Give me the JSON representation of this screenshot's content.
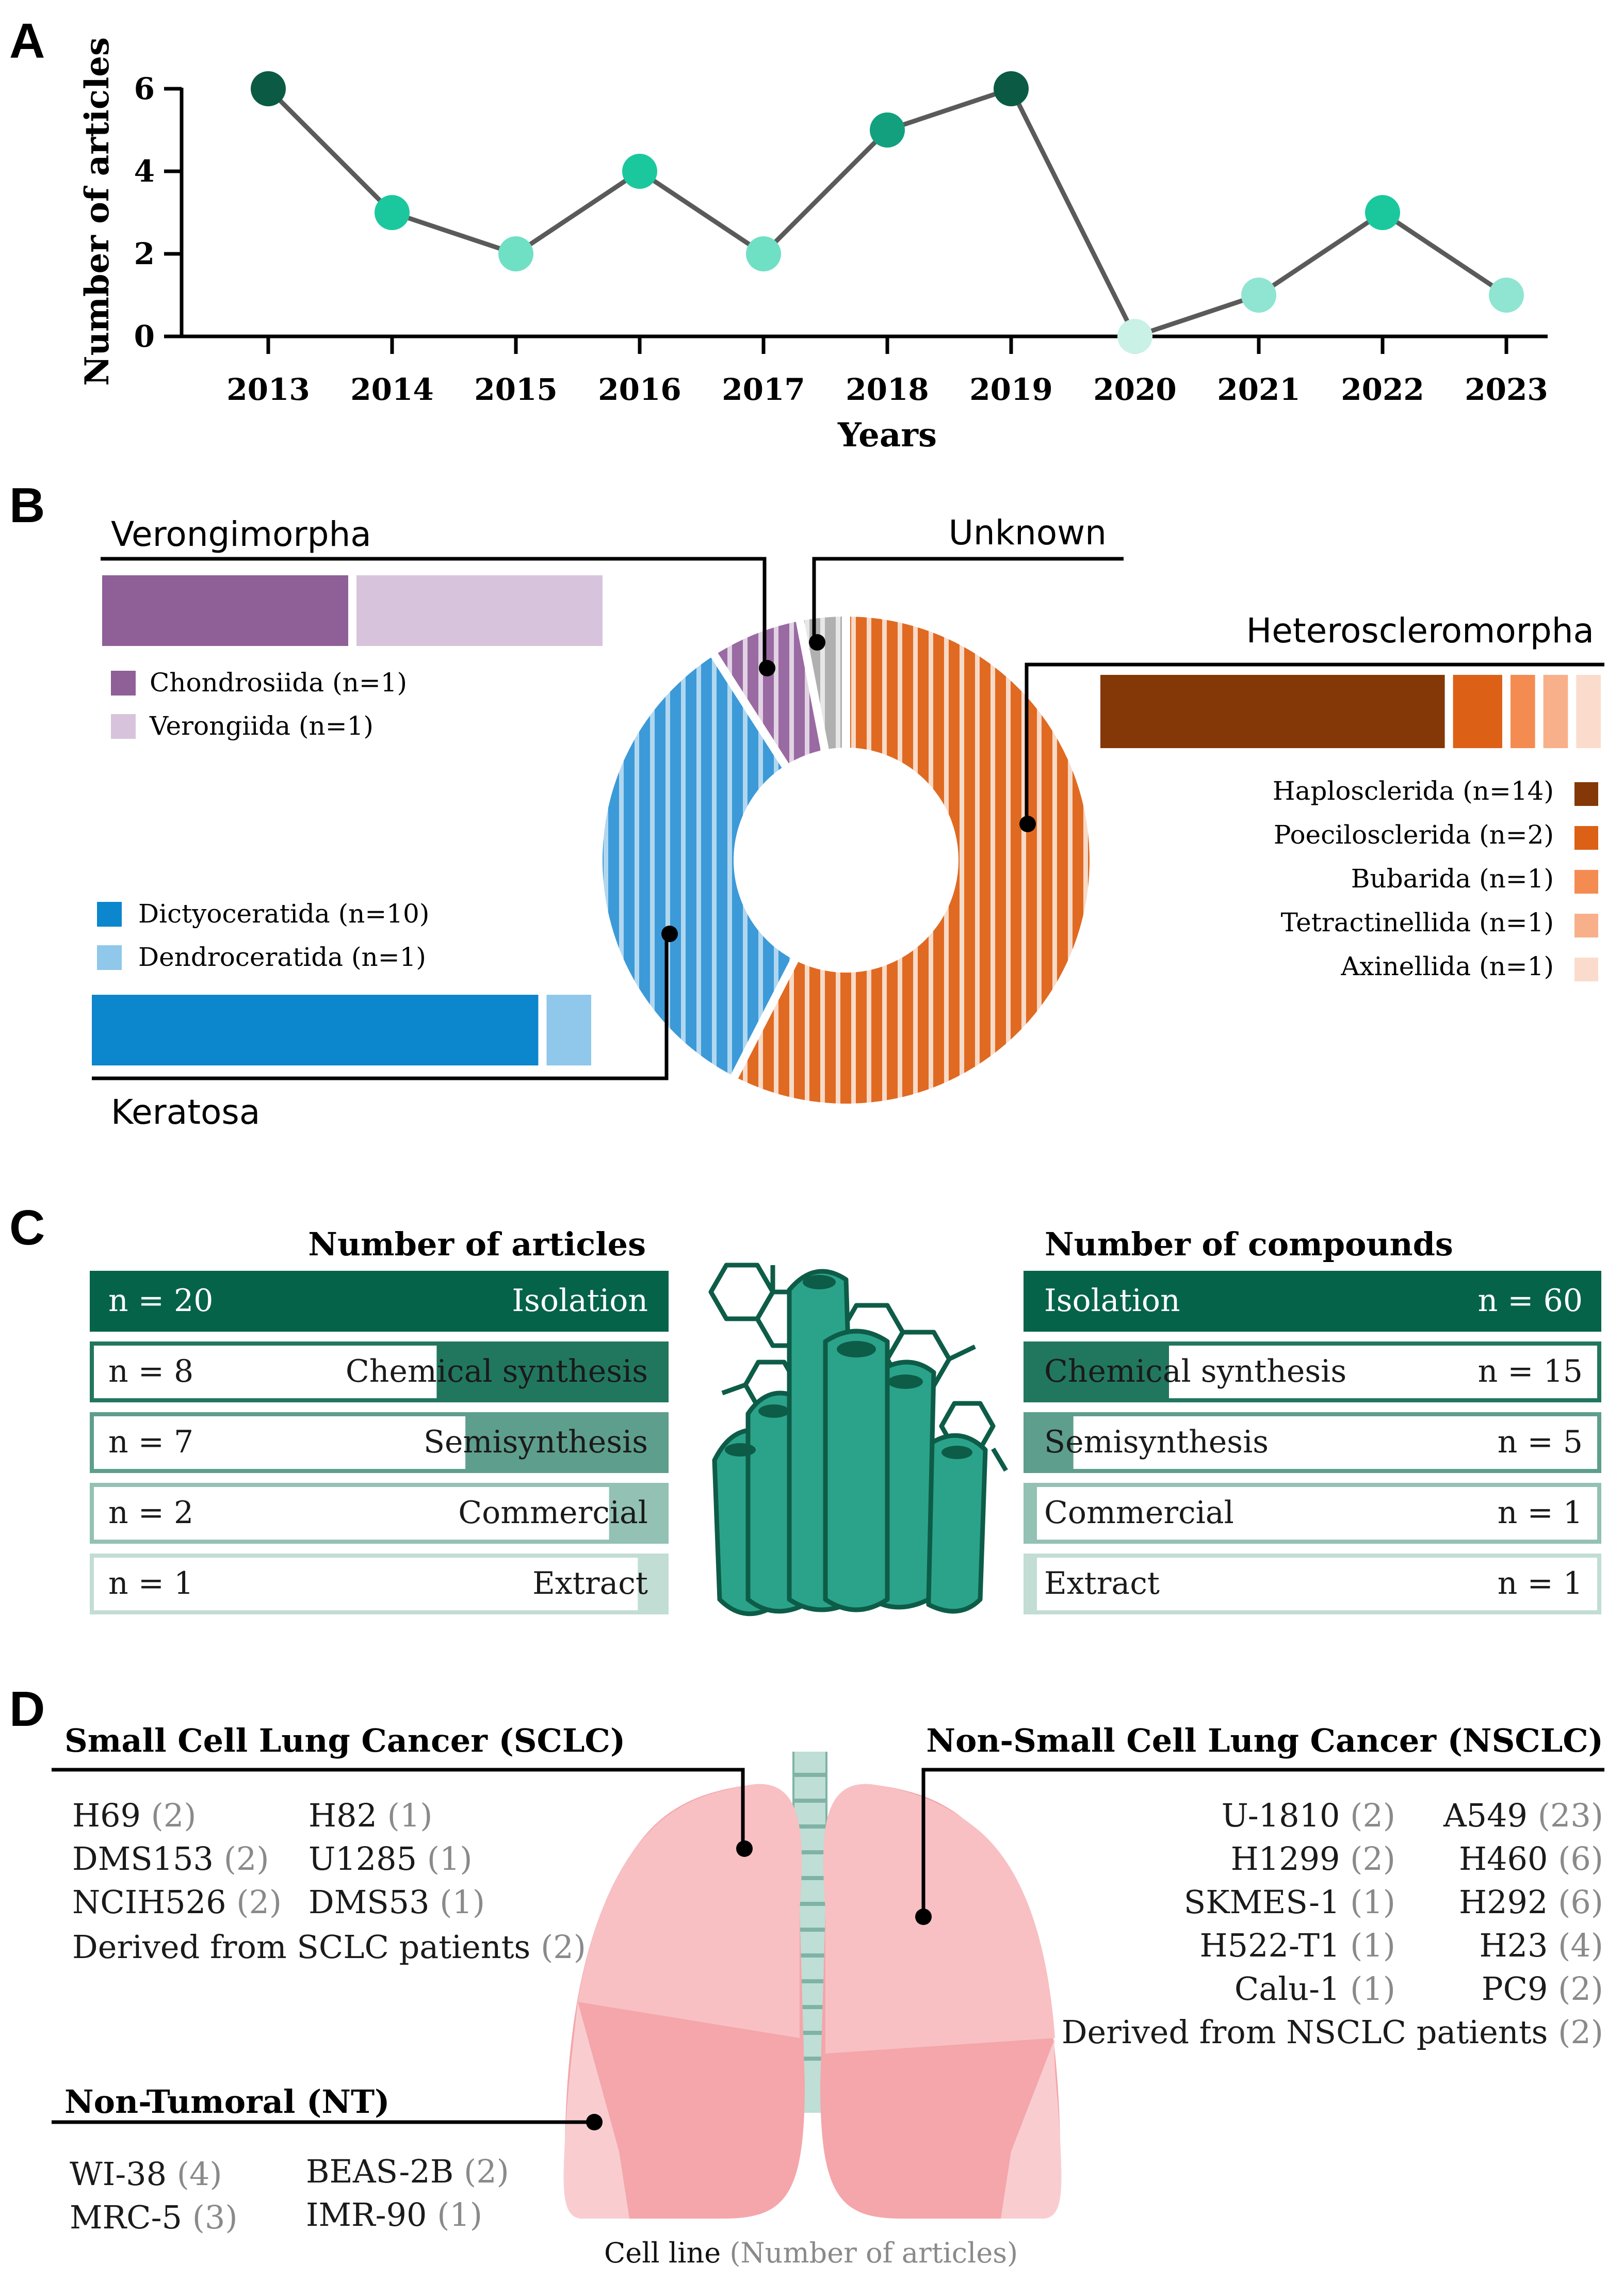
{
  "colors": {
    "dark_teal": "#05634a",
    "teal_70": "#3a8c74",
    "teal_50": "#6aa896",
    "teal_30": "#9cc7ba",
    "teal_15": "#c6e0d7",
    "sponge": "#2ba38a",
    "sponge_outline": "#0d5c47"
  },
  "panel_a": {
    "label": "A",
    "chart_data": {
      "type": "line",
      "title": "",
      "xlabel": "Years",
      "ylabel": "Number of articles",
      "x": [
        "2013",
        "2014",
        "2015",
        "2016",
        "2017",
        "2018",
        "2019",
        "2020",
        "2021",
        "2022",
        "2023"
      ],
      "values": [
        6,
        3,
        2,
        4,
        2,
        5,
        6,
        0,
        1,
        3,
        1
      ],
      "ylim": [
        0,
        6
      ],
      "yticks": [
        "0",
        "2",
        "4",
        "6"
      ],
      "grid": false
    }
  },
  "panel_b": {
    "label": "B",
    "chart_data": {
      "type": "pie",
      "variant": "donut with breakdown bars",
      "slices": [
        {
          "name": "Heteroscleromorpha",
          "value": 19,
          "color": "#d9601b"
        },
        {
          "name": "Keratosa",
          "value": 11,
          "color": "#5aace0"
        },
        {
          "name": "Verongimorpha",
          "value": 2,
          "color": "#9a6aa3"
        },
        {
          "name": "Unknown",
          "value": 1,
          "color": "#b5b5b5"
        }
      ],
      "groups": [
        {
          "name": "Verongimorpha",
          "orders": [
            {
              "label": "Chondrosiida (n=1)",
              "value": 1,
              "color": "#8f5f98"
            },
            {
              "label": "Verongiida (n=1)",
              "value": 1,
              "color": "#d8c3dc"
            }
          ]
        },
        {
          "name": "Heteroscleromorpha",
          "orders": [
            {
              "label": "Haplosclerida (n=14)",
              "value": 14,
              "color": "#843707"
            },
            {
              "label": "Poecilosclerida (n=2)",
              "value": 2,
              "color": "#dc6116"
            },
            {
              "label": "Bubarida (n=1)",
              "value": 1,
              "color": "#f48c52"
            },
            {
              "label": "Tetractinellida (n=1)",
              "value": 1,
              "color": "#f8b08a"
            },
            {
              "label": "Axinellida (n=1)",
              "value": 1,
              "color": "#fbdccc"
            }
          ]
        },
        {
          "name": "Keratosa",
          "orders": [
            {
              "label": "Dictyoceratida (n=10)",
              "value": 10,
              "color": "#0c86cc"
            },
            {
              "label": "Dendroceratida (n=1)",
              "value": 1,
              "color": "#8fc8ea"
            }
          ]
        },
        {
          "name": "Unknown",
          "orders": []
        }
      ]
    }
  },
  "panel_c": {
    "label": "C",
    "chart_data": {
      "type": "bar",
      "articles_title": "Number of articles",
      "compounds_title": "Number of compounds",
      "categories": [
        "Isolation",
        "Chemical synthesis",
        "Semisynthesis",
        "Commercial",
        "Extract"
      ],
      "articles": [
        20,
        8,
        7,
        2,
        1
      ],
      "articles_labels": [
        "n = 20",
        "n = 8",
        "n = 7",
        "n = 2",
        "n = 1"
      ],
      "compounds": [
        60,
        15,
        5,
        1,
        1
      ],
      "compounds_labels": [
        "n = 60",
        "n = 15",
        "n = 5",
        "n = 1",
        "n = 1"
      ],
      "row_colors": [
        "#05634a",
        "#21775e",
        "#5e9e8c",
        "#93c1b3",
        "#c2ddd3"
      ]
    }
  },
  "panel_d": {
    "label": "D",
    "footer_main": "Cell line ",
    "footer_sub": "(Number of articles)",
    "sclc": {
      "title": "Small Cell Lung Cancer (SCLC)",
      "col1": [
        {
          "name": "H69",
          "n": "(2)"
        },
        {
          "name": "DMS153",
          "n": "(2)"
        },
        {
          "name": "NCIH526",
          "n": "(2)"
        }
      ],
      "col2": [
        {
          "name": "H82",
          "n": "(1)"
        },
        {
          "name": "U1285",
          "n": "(1)"
        },
        {
          "name": "DMS53",
          "n": "(1)"
        }
      ],
      "extra": {
        "name": "Derived from SCLC patients",
        "n": "(2)"
      }
    },
    "nsclc": {
      "title": "Non-Small Cell Lung Cancer (NSCLC)",
      "col1": [
        {
          "name": "U-1810",
          "n": "(2)"
        },
        {
          "name": "H1299",
          "n": "(2)"
        },
        {
          "name": "SKMES-1",
          "n": "(1)"
        },
        {
          "name": "H522-T1",
          "n": "(1)"
        },
        {
          "name": "Calu-1",
          "n": "(1)"
        }
      ],
      "col2": [
        {
          "name": "A549",
          "n": "(23)"
        },
        {
          "name": "H460",
          "n": "(6)"
        },
        {
          "name": "H292",
          "n": "(6)"
        },
        {
          "name": "H23",
          "n": "(4)"
        },
        {
          "name": "PC9",
          "n": "(2)"
        }
      ],
      "extra": {
        "name": "Derived from NSCLC patients",
        "n": "(2)"
      }
    },
    "nt": {
      "title": "Non-Tumoral (NT)",
      "col1": [
        {
          "name": "WI-38",
          "n": "(4)"
        },
        {
          "name": "MRC-5",
          "n": "(3)"
        }
      ],
      "col2": [
        {
          "name": "BEAS-2B",
          "n": "(2)"
        },
        {
          "name": "IMR-90",
          "n": "(1)"
        }
      ]
    }
  }
}
